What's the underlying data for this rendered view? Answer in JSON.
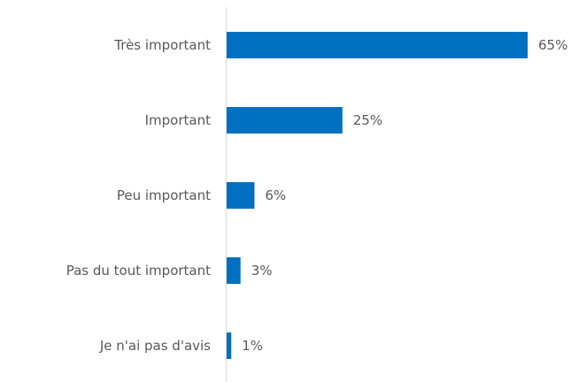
{
  "chart_data": {
    "type": "bar",
    "orientation": "horizontal",
    "categories": [
      "Très important",
      "Important",
      "Peu important",
      "Pas du tout important",
      "Je n'ai pas d'avis"
    ],
    "values": [
      65,
      25,
      6,
      3,
      1
    ],
    "value_labels": [
      "65%",
      "25%",
      "6%",
      "3%",
      "1%"
    ],
    "unit": "%",
    "title": "",
    "xlabel": "",
    "ylabel": "",
    "xlim": [
      0,
      65
    ],
    "grid": false,
    "legend": "none",
    "bar_color": "#0070C0",
    "axis_color": "#D9D9D9",
    "label_color": "#595959"
  }
}
